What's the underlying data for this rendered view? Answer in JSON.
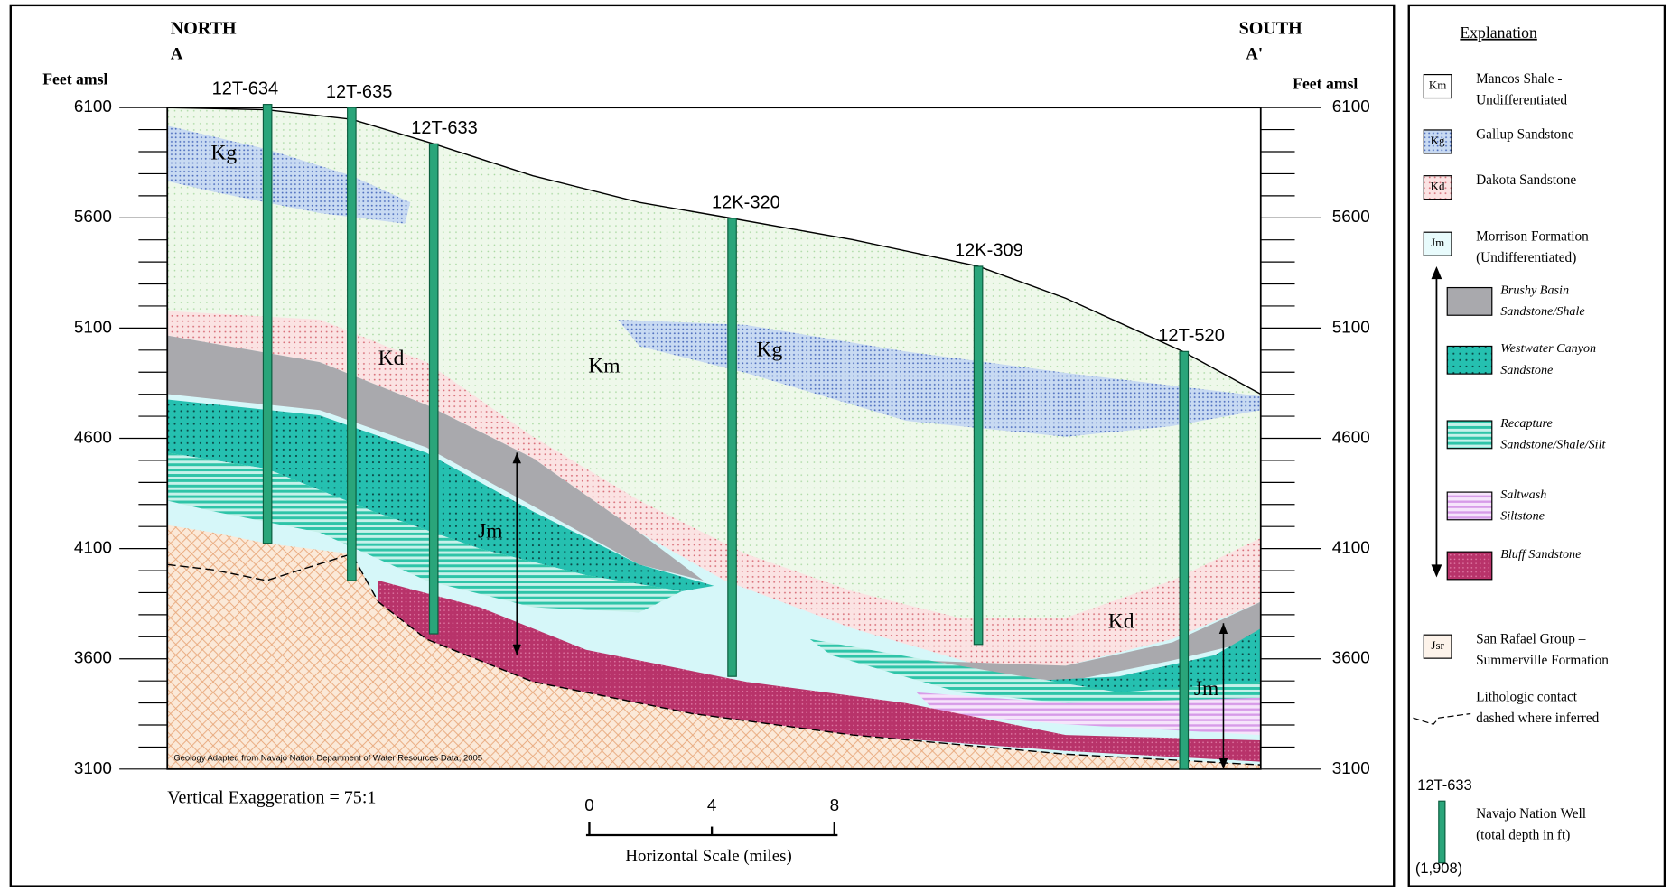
{
  "header": {
    "north": "NORTH",
    "south": "SOUTH",
    "section_start": "A",
    "section_end": "A'"
  },
  "axis": {
    "left_label": "Feet amsl",
    "right_label": "Feet amsl",
    "ticks": [
      6100,
      5600,
      5100,
      4600,
      4100,
      3600,
      3100
    ]
  },
  "wells": [
    {
      "label": "12T-634"
    },
    {
      "label": "12T-635"
    },
    {
      "label": "12T-633"
    },
    {
      "label": "12K-320"
    },
    {
      "label": "12K-309"
    },
    {
      "label": "12T-520"
    }
  ],
  "formations": [
    "Kg",
    "Kd",
    "Km",
    "Kg",
    "Jm",
    "Kd",
    "Jm"
  ],
  "notes": {
    "source": "Geology Adapted from Navajo Nation Department of Water Resources Data, 2005",
    "exaggeration": "Vertical Exaggeration = 75:1"
  },
  "scale": {
    "ticks": [
      0,
      4,
      8
    ],
    "label": "Horizontal Scale (miles)"
  },
  "legend": {
    "title": "Explanation",
    "items": [
      {
        "symbol": "Km",
        "lines": [
          "Mancos Shale -",
          "Undifferentiated"
        ]
      },
      {
        "symbol": "Kg",
        "lines": [
          "Gallup Sandstone"
        ]
      },
      {
        "symbol": "Kd",
        "lines": [
          "Dakota Sandstone"
        ]
      },
      {
        "symbol": "Jm",
        "lines": [
          "Morrison Formation",
          "(Undifferentiated)"
        ]
      },
      {
        "lines": [
          "Brushy Basin",
          "Sandstone/Shale"
        ]
      },
      {
        "lines": [
          "Westwater Canyon",
          "Sandstone"
        ]
      },
      {
        "lines": [
          "Recapture",
          "Sandstone/Shale/Silt"
        ]
      },
      {
        "lines": [
          "Saltwash",
          "Siltstone"
        ]
      },
      {
        "lines": [
          "Bluff Sandstone"
        ]
      },
      {
        "symbol": "Jsr",
        "lines": [
          "San Rafael Group –",
          "Summerville Formation"
        ]
      },
      {
        "lines": [
          "Lithologic contact",
          "dashed where inferred"
        ]
      },
      {
        "sample": "12T-633",
        "lines": [
          "Navajo Nation Well",
          "(total depth in ft)"
        ],
        "depth": "(1,908)"
      }
    ]
  }
}
